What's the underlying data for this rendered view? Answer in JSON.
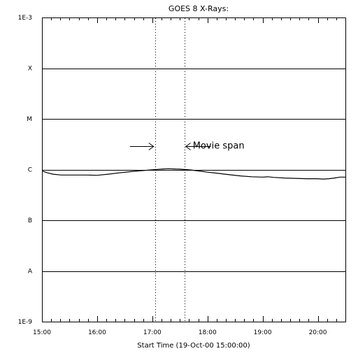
{
  "chart_data": {
    "type": "line",
    "title": "GOES 8 X-Rays:",
    "xlabel": "Start Time (19-Oct-00 15:00:00)",
    "ylabel": "",
    "x_unit": "hours",
    "xlim": [
      15.0,
      20.5
    ],
    "x_ticks": [
      {
        "value": 15,
        "label": "15:00"
      },
      {
        "value": 16,
        "label": "16:00"
      },
      {
        "value": 17,
        "label": "17:00"
      },
      {
        "value": 18,
        "label": "18:00"
      },
      {
        "value": 19,
        "label": "19:00"
      },
      {
        "value": 20,
        "label": "20:00"
      }
    ],
    "y_scale": "log",
    "ylim": [
      1e-09,
      0.001
    ],
    "y_ticks": [
      {
        "value": 1e-09,
        "label": "1E-9"
      },
      {
        "value": 1e-08,
        "label": "A"
      },
      {
        "value": 1e-07,
        "label": "B"
      },
      {
        "value": 1e-06,
        "label": "C"
      },
      {
        "value": 1e-05,
        "label": "M"
      },
      {
        "value": 0.0001,
        "label": "X"
      },
      {
        "value": 0.001,
        "label": "1E-3"
      }
    ],
    "horizontal_lines": [
      0.0001,
      1e-05,
      1e-06,
      1e-07,
      1e-08
    ],
    "vertical_markers": [
      17.05,
      17.58
    ],
    "annotation": {
      "text": "Movie span",
      "x": 18.0,
      "y": 2.6e-06
    },
    "series": [
      {
        "x": [
          15.0,
          15.1,
          15.2,
          15.35,
          15.5,
          15.8,
          16.0,
          16.2,
          16.4,
          16.6,
          16.8,
          17.0,
          17.1,
          17.2,
          17.3,
          17.4,
          17.5,
          17.6,
          17.7,
          17.8,
          17.9,
          18.0,
          18.2,
          18.4,
          18.6,
          18.8,
          19.0,
          19.1,
          19.2,
          19.4,
          19.6,
          19.8,
          20.0,
          20.1,
          20.2,
          20.3,
          20.4,
          20.5
        ],
        "values": [
          9.4e-07,
          8.6e-07,
          8.1e-07,
          7.8e-07,
          7.8e-07,
          7.8e-07,
          7.7e-07,
          8.1e-07,
          8.6e-07,
          9.1e-07,
          9.5e-07,
          9.9e-07,
          1.01e-06,
          1.03e-06,
          1.04e-06,
          1.03e-06,
          1.02e-06,
          1e-06,
          9.8e-07,
          9.5e-07,
          9.2e-07,
          8.9e-07,
          8.4e-07,
          7.9e-07,
          7.5e-07,
          7.2e-07,
          7.1e-07,
          7.2e-07,
          7e-07,
          6.8e-07,
          6.7e-07,
          6.6e-07,
          6.6e-07,
          6.5e-07,
          6.6e-07,
          6.8e-07,
          7.1e-07,
          7.1e-07
        ]
      }
    ]
  }
}
